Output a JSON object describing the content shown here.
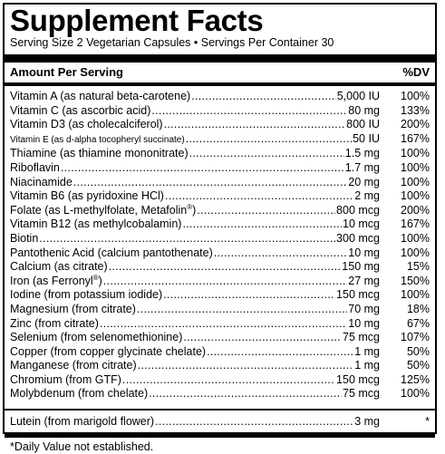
{
  "title": "Supplement Facts",
  "serving": "Serving Size 2 Vegetarian Capsules • Servings Per Container 30",
  "header": {
    "amount": "Amount Per Serving",
    "dv": "%DV"
  },
  "nutrients": [
    {
      "name": "Vitamin A (as natural beta-carotene)",
      "amount": "5,000 IU",
      "dv": "100%"
    },
    {
      "name": "Vitamin C (as ascorbic acid)",
      "amount": "80 mg",
      "dv": "133%"
    },
    {
      "name": "Vitamin D3 (as cholecalciferol)",
      "amount": "800 IU",
      "dv": "200%"
    },
    {
      "name": "Vitamin E (as d-alpha tocopheryl succinate)",
      "amount": "50 IU",
      "dv": "167%",
      "small": true
    },
    {
      "name": "Thiamine (as thiamine mononitrate)",
      "amount": "1.5 mg",
      "dv": "100%"
    },
    {
      "name": "Riboflavin",
      "amount": "1.7 mg",
      "dv": "100%"
    },
    {
      "name": "Niacinamide",
      "amount": "20 mg",
      "dv": "100%"
    },
    {
      "name": "Vitamin B6 (as pyridoxine HCl)",
      "amount": "2 mg",
      "dv": "100%"
    },
    {
      "name": "Folate (as L-methylfolate, Metafolin",
      "sup": "®",
      "name_end": ")",
      "amount": "800 mcg",
      "dv": "200%"
    },
    {
      "name": "Vitamin B12 (as methylcobalamin)",
      "amount": "10 mcg",
      "dv": "167%"
    },
    {
      "name": "Biotin",
      "amount": "300 mcg",
      "dv": "100%"
    },
    {
      "name": "Pantothenic Acid (calcium pantothenate)",
      "amount": "10 mg",
      "dv": "100%"
    },
    {
      "name": "Calcium (as citrate)",
      "amount": "150 mg",
      "dv": "15%"
    },
    {
      "name": "Iron (as Ferronyl",
      "sup": "®",
      "name_end": ")",
      "amount": "27 mg",
      "dv": "150%"
    },
    {
      "name": "Iodine (from potassium iodide)",
      "amount": "150 mcg",
      "dv": "100%"
    },
    {
      "name": "Magnesium (from citrate)",
      "amount": "70 mg",
      "dv": "18%"
    },
    {
      "name": "Zinc (from citrate)",
      "amount": "10 mg",
      "dv": "67%"
    },
    {
      "name": "Selenium (from selenomethionine)",
      "amount": "75 mcg",
      "dv": "107%"
    },
    {
      "name": "Copper (from copper glycinate chelate)",
      "amount": "1 mg",
      "dv": "50%"
    },
    {
      "name": "Manganese (from citrate)",
      "amount": "1 mg",
      "dv": "50%"
    },
    {
      "name": "Chromium (from GTF)",
      "amount": "150 mcg",
      "dv": "125%"
    },
    {
      "name": "Molybdenum (from chelate)",
      "amount": "75 mcg",
      "dv": "100%"
    }
  ],
  "extra": {
    "name": "Lutein (from marigold flower)",
    "amount": "3 mg",
    "dv": "*"
  },
  "footnote": "*Daily Value not established."
}
